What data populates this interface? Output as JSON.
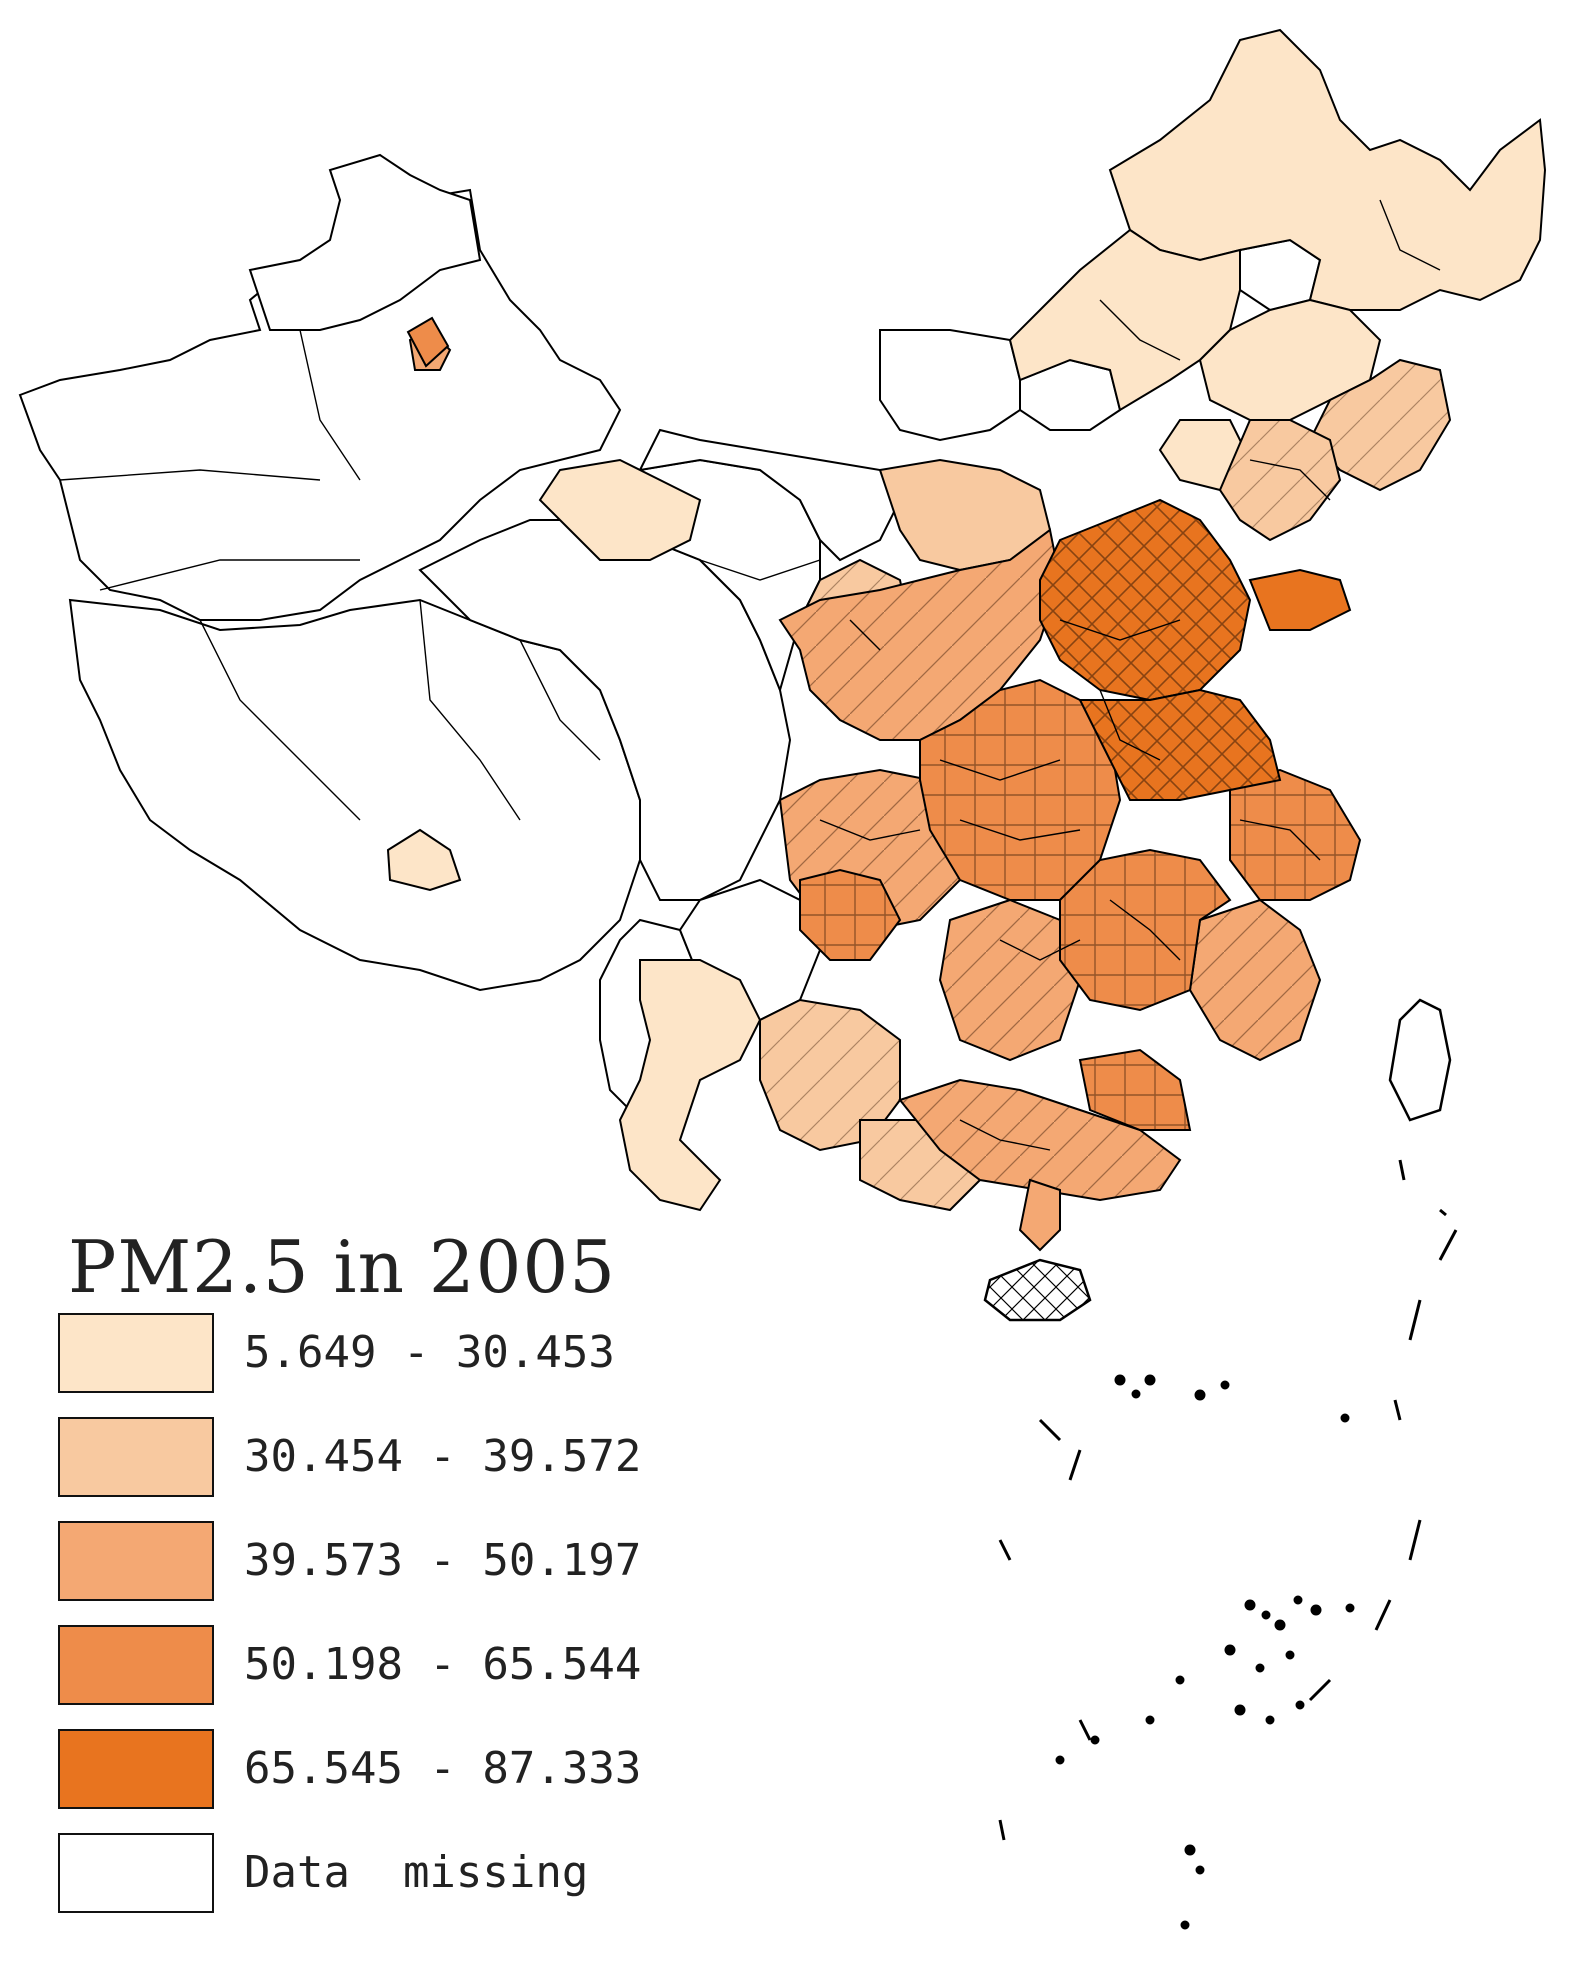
{
  "map": {
    "title": "PM2.5 in 2005",
    "legend": [
      {
        "label": "5.649 - 30.453",
        "color": "#fde5c8"
      },
      {
        "label": "30.454 - 39.572",
        "color": "#f8c9a0"
      },
      {
        "label": "39.573 - 50.197",
        "color": "#f4a873"
      },
      {
        "label": "50.198 - 65.544",
        "color": "#ee8c4a"
      },
      {
        "label": "65.545 - 87.333",
        "color": "#e8741f"
      },
      {
        "label": "Data  missing",
        "color": "#ffffff"
      }
    ],
    "colors": {
      "border": "#000000",
      "background": "#ffffff"
    }
  }
}
